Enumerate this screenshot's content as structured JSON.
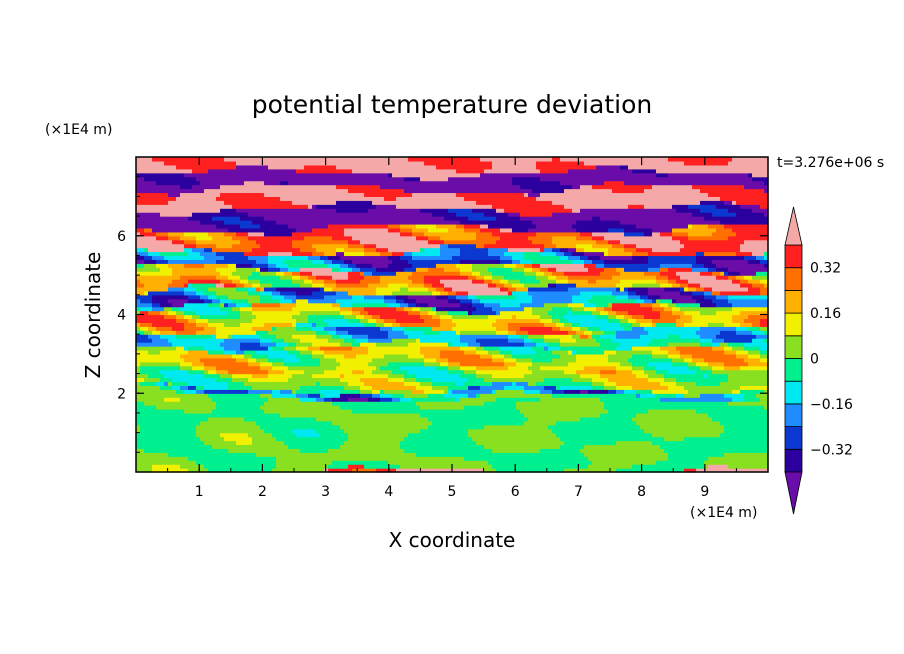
{
  "chart_data": {
    "type": "heatmap",
    "title": "potential temperature deviation",
    "xlabel": "X coordinate",
    "ylabel": "Z coordinate",
    "x_unit": "(×1E4 m)",
    "y_unit": "(×1E4 m)",
    "time_label": "t=3.276e+06 s",
    "xlim": [
      0,
      10
    ],
    "ylim": [
      0,
      8
    ],
    "x_ticks": [
      1,
      2,
      3,
      4,
      5,
      6,
      7,
      8,
      9
    ],
    "y_ticks": [
      2,
      4,
      6
    ],
    "colorbar": {
      "levels": [
        -0.48,
        -0.4,
        -0.32,
        -0.24,
        -0.16,
        -0.08,
        0,
        0.08,
        0.16,
        0.24,
        0.32,
        0.4
      ],
      "tick_labels": [
        "0.32",
        "0.16",
        "0",
        "−0.16",
        "−0.32"
      ],
      "tick_values": [
        0.32,
        0.16,
        0,
        -0.16,
        -0.32
      ],
      "colors": [
        "#6a0ca8",
        "#2b009e",
        "#0b38d0",
        "#1f8cff",
        "#00e8f0",
        "#00f090",
        "#88e020",
        "#f0f000",
        "#ffb000",
        "#ff7000",
        "#ff2020",
        "#f4a8a8"
      ],
      "extend": "both"
    },
    "bands": [
      {
        "z0": 0.0,
        "z1": 1.9,
        "level": 0.0,
        "amp": 0.05
      },
      {
        "z0": 1.9,
        "z1": 2.1,
        "level": -0.16,
        "amp": 0.25
      },
      {
        "z0": 2.1,
        "z1": 2.6,
        "level": 0.04,
        "amp": 0.18
      },
      {
        "z0": 2.6,
        "z1": 3.2,
        "level": 0.1,
        "amp": 0.22
      },
      {
        "z0": 3.2,
        "z1": 3.6,
        "level": -0.1,
        "amp": 0.22
      },
      {
        "z0": 3.6,
        "z1": 4.2,
        "level": 0.12,
        "amp": 0.28
      },
      {
        "z0": 4.2,
        "z1": 4.6,
        "level": -0.2,
        "amp": 0.25
      },
      {
        "z0": 4.6,
        "z1": 5.2,
        "level": 0.22,
        "amp": 0.28
      },
      {
        "z0": 5.2,
        "z1": 5.6,
        "level": -0.26,
        "amp": 0.25
      },
      {
        "z0": 5.6,
        "z1": 6.2,
        "level": 0.34,
        "amp": 0.2
      },
      {
        "z0": 6.2,
        "z1": 6.7,
        "level": -0.42,
        "amp": 0.12
      },
      {
        "z0": 6.7,
        "z1": 7.2,
        "level": 0.42,
        "amp": 0.1
      },
      {
        "z0": 7.2,
        "z1": 7.6,
        "level": -0.45,
        "amp": 0.1
      },
      {
        "z0": 7.6,
        "z1": 8.0,
        "level": 0.42,
        "amp": 0.1
      }
    ]
  }
}
